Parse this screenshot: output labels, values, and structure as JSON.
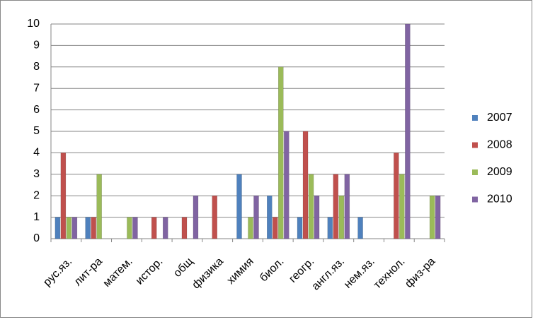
{
  "chart_data": {
    "type": "bar",
    "categories": [
      "рус.яз.",
      "лит-ра",
      "матем.",
      "истор.",
      "общ",
      "физика",
      "химия",
      "биол.",
      "геогр.",
      "англ.яз.",
      "нем.яз.",
      "технол.",
      "физ-ра"
    ],
    "series": [
      {
        "name": "2007",
        "color": "#4f81bd",
        "values": [
          1,
          1,
          0,
          0,
          0,
          0,
          3,
          2,
          1,
          1,
          1,
          0,
          0
        ]
      },
      {
        "name": "2008",
        "color": "#c0504d",
        "values": [
          4,
          1,
          0,
          1,
          1,
          2,
          0,
          1,
          5,
          3,
          0,
          4,
          0
        ]
      },
      {
        "name": "2009",
        "color": "#9bbb59",
        "values": [
          1,
          3,
          1,
          0,
          0,
          0,
          1,
          8,
          3,
          2,
          0,
          3,
          2
        ]
      },
      {
        "name": "2010",
        "color": "#8064a2",
        "values": [
          1,
          0,
          1,
          1,
          2,
          0,
          2,
          5,
          2,
          3,
          0,
          10,
          2
        ]
      }
    ],
    "ylim": [
      0,
      10
    ],
    "yticks": [
      0,
      1,
      2,
      3,
      4,
      5,
      6,
      7,
      8,
      9,
      10
    ],
    "grid": true,
    "legend": "right"
  }
}
